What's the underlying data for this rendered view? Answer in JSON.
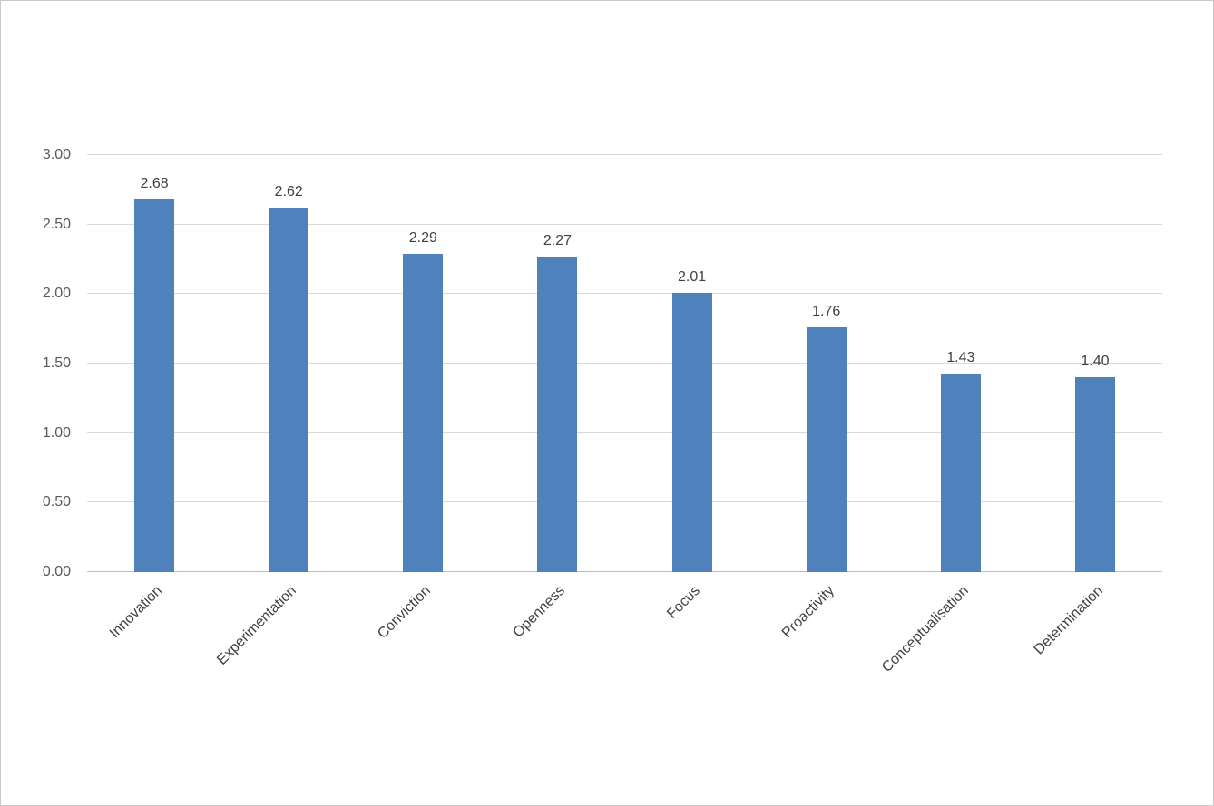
{
  "chart_data": {
    "type": "bar",
    "title": "",
    "xlabel": "",
    "ylabel": "",
    "categories": [
      "Innovation",
      "Experimentation",
      "Conviction",
      "Openness",
      "Focus",
      "Proactivity",
      "Conceptualisation",
      "Determination"
    ],
    "values": [
      2.68,
      2.62,
      2.29,
      2.27,
      2.01,
      1.76,
      1.43,
      1.4
    ],
    "value_labels": [
      "2.68",
      "2.62",
      "2.29",
      "2.27",
      "2.01",
      "1.76",
      "1.43",
      "1.40"
    ],
    "ylim": [
      0,
      3.0
    ],
    "yticks": [
      0,
      0.5,
      1.0,
      1.5,
      2.0,
      2.5,
      3.0
    ],
    "ytick_labels": [
      "0.00",
      "0.50",
      "1.00",
      "1.50",
      "2.00",
      "2.50",
      "3.00"
    ],
    "grid": true,
    "legend": "none",
    "bar_color": "#4f81bd",
    "gridline_color": "#d9d9d9",
    "axis_line_color": "#bfbfbf"
  }
}
